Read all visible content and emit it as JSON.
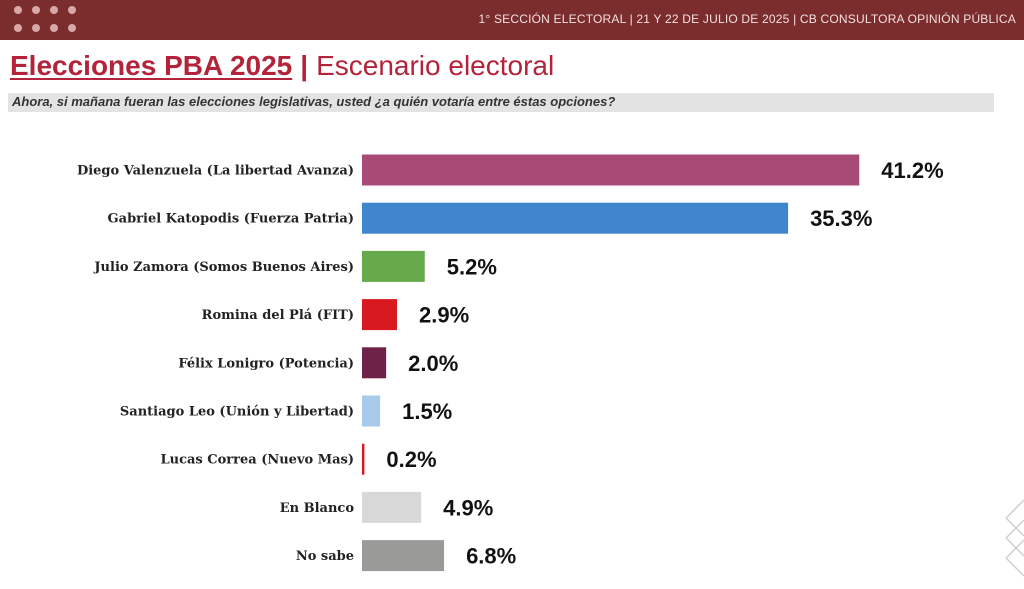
{
  "header": {
    "text": "1° SECCIÓN ELECTORAL  | 21 Y 22 DE JULIO DE 2025 | CB CONSULTORA OPINIÓN PÚBLICA"
  },
  "title": {
    "main": "Elecciones PBA 2025",
    "separator": "|",
    "sub": "Escenario electoral"
  },
  "question": "Ahora, si mañana fueran las elecciones legislativas, usted ¿a quién votaría entre éstas opciones?",
  "chart_data": {
    "type": "bar",
    "orientation": "horizontal",
    "categories": [
      "Diego Valenzuela (La libertad Avanza)",
      "Gabriel Katopodis (Fuerza Patria)",
      "Julio Zamora (Somos Buenos Aires)",
      "Romina del Plá (FIT)",
      "Félix Lonigro (Potencia)",
      "Santiago Leo (Unión y Libertad)",
      "Lucas Correa (Nuevo Mas)",
      "En Blanco",
      "No sabe"
    ],
    "values": [
      41.2,
      35.3,
      5.2,
      2.9,
      2.0,
      1.5,
      0.2,
      4.9,
      6.8
    ],
    "value_labels": [
      "41.2%",
      "35.3%",
      "5.2%",
      "2.9%",
      "2.0%",
      "1.5%",
      "0.2%",
      "4.9%",
      "6.8%"
    ],
    "colors": [
      "#a84a76",
      "#3f86cf",
      "#66aa4b",
      "#d81920",
      "#6e2248",
      "#a9cbeb",
      "#d81920",
      "#d8d8d8",
      "#9a9a98"
    ],
    "title": "",
    "xlabel": "",
    "ylabel": "",
    "grid": false,
    "legend": "none"
  }
}
